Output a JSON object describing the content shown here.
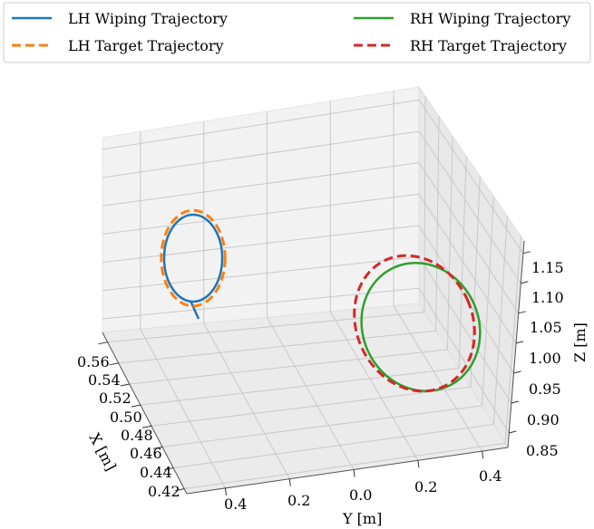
{
  "chart_data": {
    "type": "line3d",
    "legend_position": "top",
    "grid": true,
    "xlabel": "X [m]",
    "ylabel": "Y [m]",
    "zlabel": "Z [m]",
    "x_ticks": [
      "0.56",
      "0.54",
      "0.52",
      "0.50",
      "0.48",
      "0.46",
      "0.44",
      "0.42"
    ],
    "y_ticks": [
      "0.4",
      "0.2",
      "0.0",
      "0.2",
      "0.4"
    ],
    "z_ticks": [
      "1.15",
      "1.10",
      "1.05",
      "1.00",
      "0.95",
      "0.90",
      "0.85"
    ],
    "series": [
      {
        "name": "LH Wiping Trajectory",
        "color": "#1f77b4",
        "style": "solid",
        "shape": "ellipse",
        "center_y": -0.38,
        "center_z": 1.05,
        "radius_y": 0.05,
        "radius_z": 0.1
      },
      {
        "name": "LH Target Trajectory",
        "color": "#ff7f0e",
        "style": "dashed",
        "shape": "ellipse",
        "center_y": -0.38,
        "center_z": 1.05,
        "radius_y": 0.055,
        "radius_z": 0.11
      },
      {
        "name": "RH Wiping Trajectory",
        "color": "#2ca02c",
        "style": "solid",
        "shape": "ellipse",
        "center_y": 0.25,
        "center_z": 1.0,
        "radius_y": 0.1,
        "radius_z": 0.15
      },
      {
        "name": "RH Target Trajectory",
        "color": "#d62728",
        "style": "dashed",
        "shape": "ellipse",
        "center_y": 0.25,
        "center_z": 1.0,
        "radius_y": 0.1,
        "radius_z": 0.16
      }
    ]
  }
}
